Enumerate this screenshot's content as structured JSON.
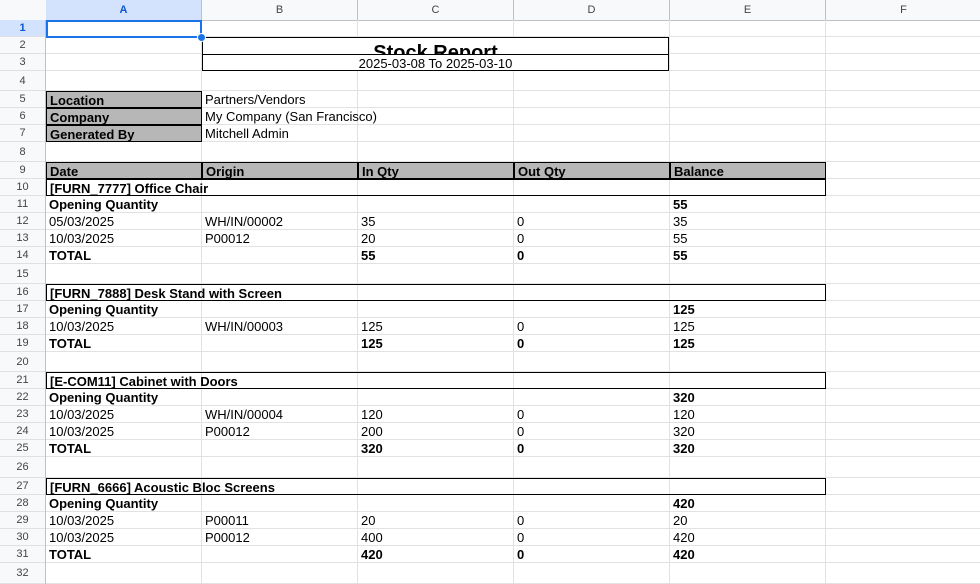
{
  "columns": [
    "A",
    "B",
    "C",
    "D",
    "E",
    "F"
  ],
  "rows": [
    "1",
    "2",
    "3",
    "4",
    "5",
    "6",
    "7",
    "8",
    "9",
    "10",
    "11",
    "12",
    "13",
    "14",
    "15",
    "16",
    "17",
    "18",
    "19",
    "20",
    "21",
    "22",
    "23",
    "24",
    "25",
    "26",
    "27",
    "28",
    "29",
    "30",
    "31",
    "32"
  ],
  "report": {
    "title": "Stock Report",
    "date_range": "2025-03-08 To 2025-03-10",
    "info": [
      {
        "label": "Location",
        "value": "Partners/Vendors"
      },
      {
        "label": "Company",
        "value": "My Company (San Francisco)"
      },
      {
        "label": "Generated By",
        "value": "Mitchell Admin"
      }
    ],
    "headers": [
      "Date",
      "Origin",
      "In Qty",
      "Out Qty",
      "Balance"
    ],
    "products": [
      {
        "name": "[FURN_7777] Office Chair",
        "opening_label": "Opening Quantity",
        "opening": "55",
        "lines": [
          {
            "date": "05/03/2025",
            "origin": "WH/IN/00002",
            "in": "35",
            "out": "0",
            "balance": "35"
          },
          {
            "date": "10/03/2025",
            "origin": "P00012",
            "in": "20",
            "out": "0",
            "balance": "55"
          }
        ],
        "total": {
          "label": "TOTAL",
          "in": "55",
          "out": "0",
          "balance": "55"
        }
      },
      {
        "name": "[FURN_7888] Desk Stand with Screen",
        "opening_label": "Opening Quantity",
        "opening": "125",
        "lines": [
          {
            "date": "10/03/2025",
            "origin": "WH/IN/00003",
            "in": "125",
            "out": "0",
            "balance": "125"
          }
        ],
        "total": {
          "label": "TOTAL",
          "in": "125",
          "out": "0",
          "balance": "125"
        }
      },
      {
        "name": "[E-COM11] Cabinet with Doors",
        "opening_label": "Opening Quantity",
        "opening": "320",
        "lines": [
          {
            "date": "10/03/2025",
            "origin": "WH/IN/00004",
            "in": "120",
            "out": "0",
            "balance": "120"
          },
          {
            "date": "10/03/2025",
            "origin": "P00012",
            "in": "200",
            "out": "0",
            "balance": "320"
          }
        ],
        "total": {
          "label": "TOTAL",
          "in": "320",
          "out": "0",
          "balance": "320"
        }
      },
      {
        "name": "[FURN_6666] Acoustic Bloc Screens",
        "opening_label": "Opening Quantity",
        "opening": "420",
        "lines": [
          {
            "date": "10/03/2025",
            "origin": "P00011",
            "in": "20",
            "out": "0",
            "balance": "20"
          },
          {
            "date": "10/03/2025",
            "origin": "P00012",
            "in": "400",
            "out": "0",
            "balance": "420"
          }
        ],
        "total": {
          "label": "TOTAL",
          "in": "420",
          "out": "0",
          "balance": "420"
        }
      }
    ]
  },
  "colors": {
    "selection": "#1a73e8",
    "header_fill": "#b7b7b7"
  }
}
